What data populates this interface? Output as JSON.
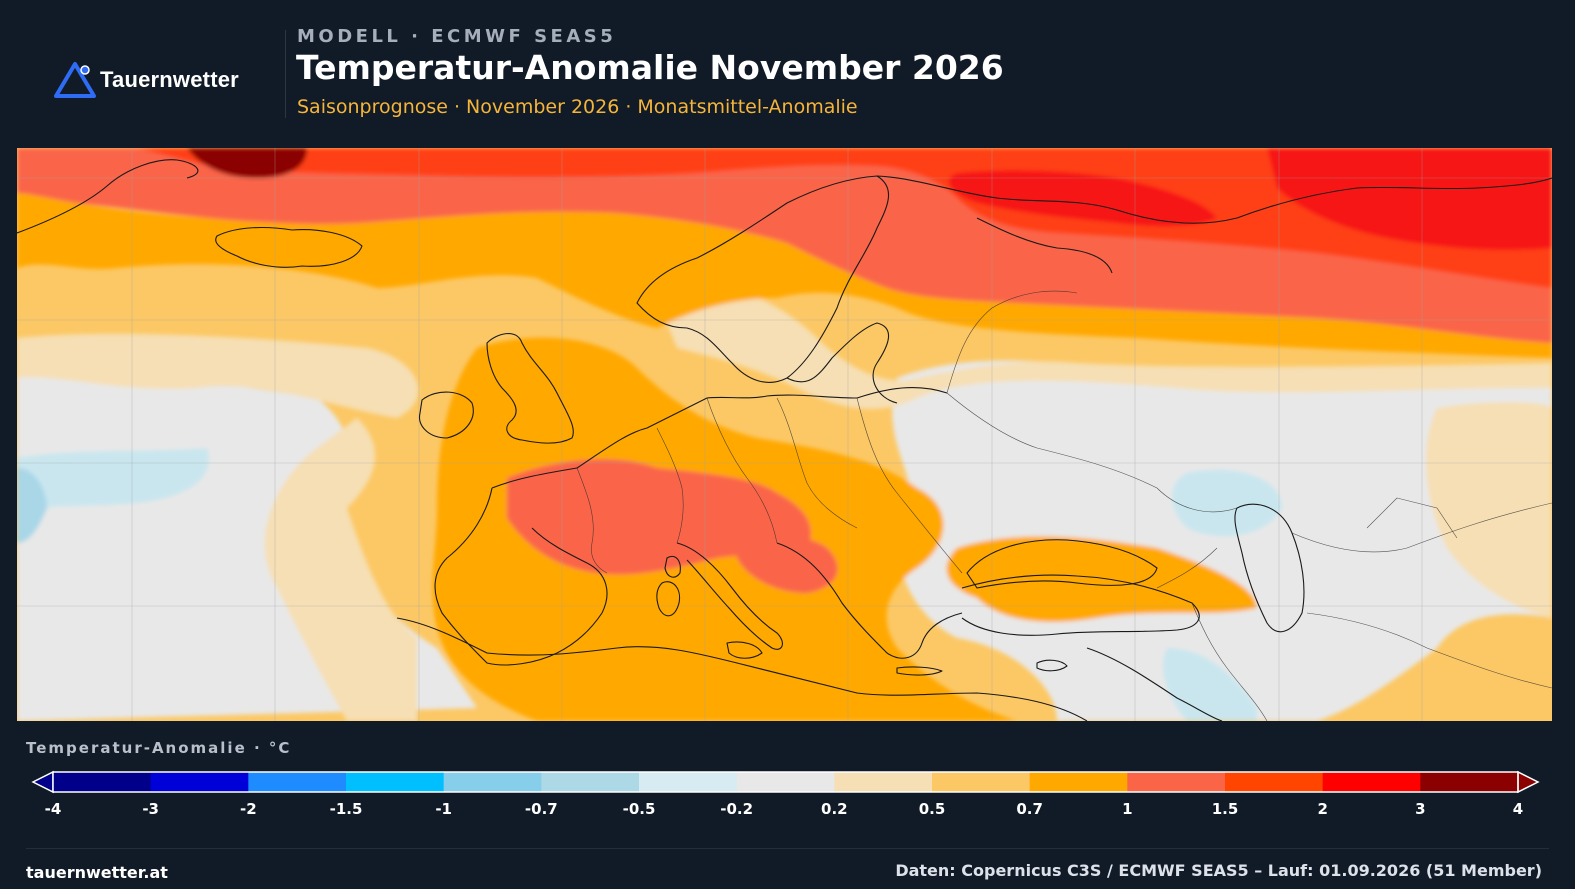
{
  "brand": {
    "name": "Tauernwetter",
    "logo_icon": "triangle-logo-icon",
    "accent": "#2e6cf6"
  },
  "header": {
    "kicker": "MODELL · ECMWF SEAS5",
    "title": "Temperatur-Anomalie November 2026",
    "subtitle": "Saisonprognose · November 2026 · Monatsmittel-Anomalie"
  },
  "map": {
    "variable": "Temperatur-Anomalie",
    "region": "Europa",
    "palette": {
      "light_blue": "#c9e6ee",
      "blue": "#a9d7e8",
      "neutral": "#e8e8e8",
      "cream": "#f6dfb4",
      "light_orange": "#fcc865",
      "orange": "#ffa800",
      "salmon": "#fa6548",
      "red_orange": "#ff3f17",
      "red": "#f71914",
      "dark_red": "#8b0000"
    }
  },
  "legend": {
    "title": "Temperatur-Anomalie · °C",
    "colors": [
      "#00008b",
      "#0000d8",
      "#1e8cff",
      "#00bfff",
      "#87ceeb",
      "#add8e6",
      "#d6ecf2",
      "#e8e8e8",
      "#f6dfb4",
      "#fcc865",
      "#ffa800",
      "#fa6548",
      "#ff4500",
      "#ff0000",
      "#8b0000"
    ],
    "ticks": [
      "-4",
      "-3",
      "-2",
      "-1.5",
      "-1",
      "-0.7",
      "-0.5",
      "-0.2",
      "0.2",
      "0.5",
      "0.7",
      "1",
      "1.5",
      "2",
      "3",
      "4"
    ]
  },
  "footer": {
    "site": "tauernwetter.at",
    "source": "Daten: Copernicus C3S / ECMWF SEAS5 – Lauf: 01.09.2026 (51 Member)"
  }
}
